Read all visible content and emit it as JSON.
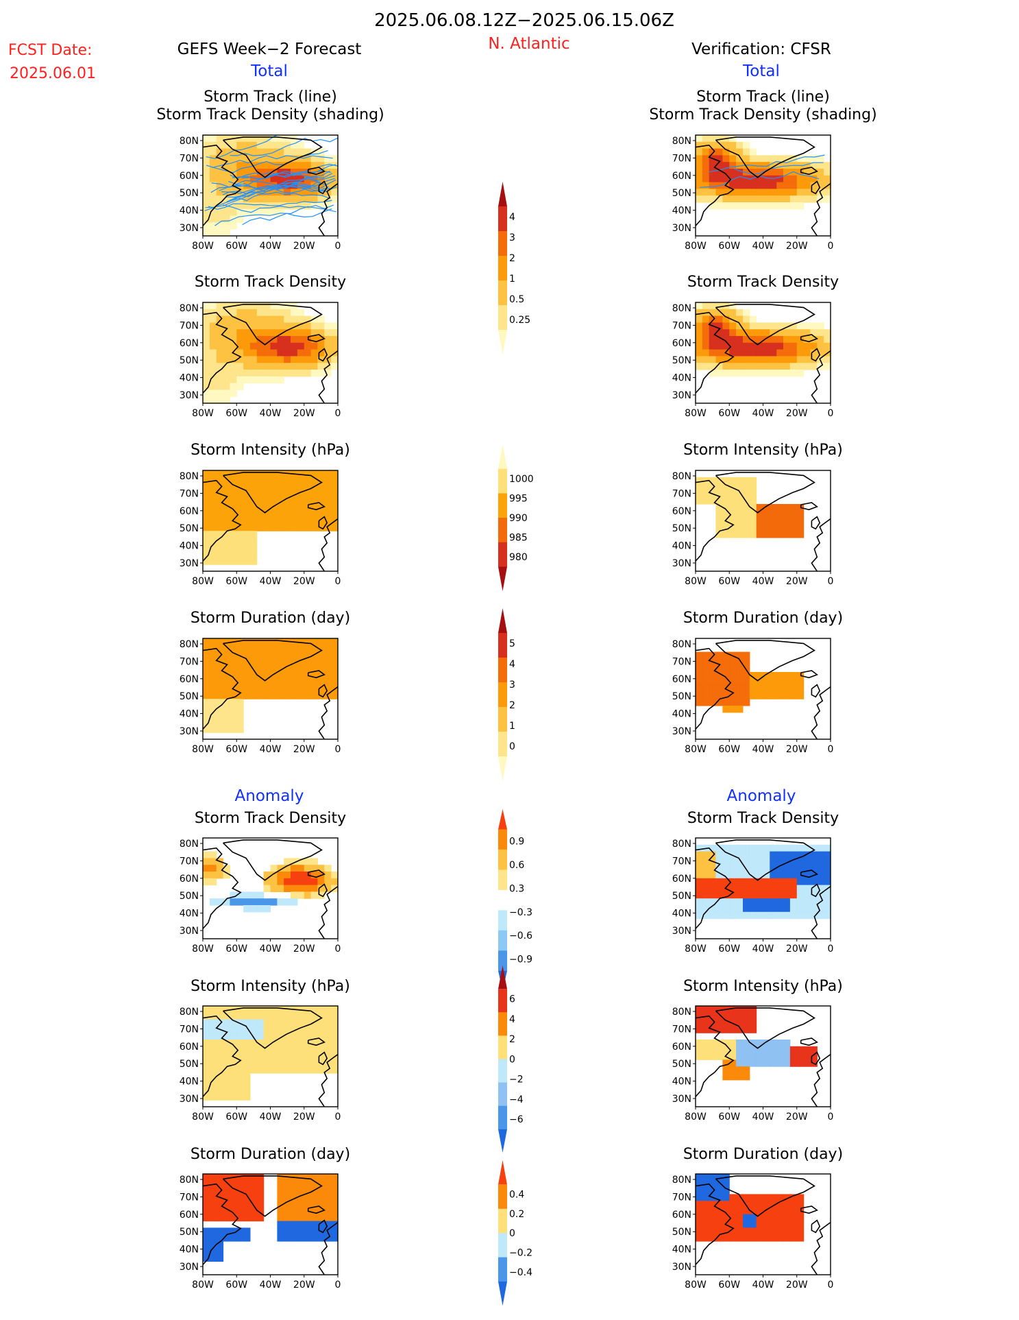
{
  "header": {
    "date_range": "2025.06.08.12Z−2025.06.15.06Z",
    "fcst_label": "FCST Date:",
    "fcst_value": "2025.06.01",
    "forecast_title": "GEFS Week−2 Forecast",
    "region": "N. Atlantic",
    "verification_title": "Verification: CFSR",
    "total_label": "Total",
    "anomaly_label": "Anomaly"
  },
  "colors": {
    "title_red": "#ff2020",
    "title_blue": "#1030ff",
    "track_line": "#1e90ff",
    "map_outline": "#000000"
  },
  "axis": {
    "lat_ticks": [
      "80N",
      "70N",
      "60N",
      "50N",
      "40N",
      "30N"
    ],
    "lon_ticks": [
      "80W",
      "60W",
      "40W",
      "20W",
      "0"
    ]
  },
  "panels": [
    {
      "id": "fc-track",
      "col": "left",
      "row": 0,
      "title": "Storm Track (line)",
      "subtitle": "Storm Track Density (shading)",
      "field": "track_density",
      "lines": true,
      "scale": "density"
    },
    {
      "id": "fc-density",
      "col": "left",
      "row": 1,
      "title": "Storm Track Density",
      "field": "track_density",
      "scale": "density"
    },
    {
      "id": "fc-intensity",
      "col": "left",
      "row": 2,
      "title": "Storm Intensity (hPa)",
      "field": "intensity",
      "scale": "intensity"
    },
    {
      "id": "fc-duration",
      "col": "left",
      "row": 3,
      "title": "Storm Duration (day)",
      "field": "duration",
      "scale": "duration"
    },
    {
      "id": "fc-density-anom",
      "col": "left",
      "row": 4,
      "title": "Storm Track Density",
      "field": "density_anomaly",
      "scale": "anom_density"
    },
    {
      "id": "fc-intensity-anom",
      "col": "left",
      "row": 5,
      "title": "Storm Intensity (hPa)",
      "field": "intensity_anomaly",
      "scale": "anom_intensity"
    },
    {
      "id": "fc-duration-anom",
      "col": "left",
      "row": 6,
      "title": "Storm Duration (day)",
      "field": "duration_anomaly",
      "scale": "anom_duration"
    },
    {
      "id": "vf-track",
      "col": "right",
      "row": 0,
      "title": "Storm Track (line)",
      "subtitle": "Storm Track Density (shading)",
      "field": "track_density",
      "lines": true,
      "scale": "density"
    },
    {
      "id": "vf-density",
      "col": "right",
      "row": 1,
      "title": "Storm Track Density",
      "field": "track_density",
      "scale": "density"
    },
    {
      "id": "vf-intensity",
      "col": "right",
      "row": 2,
      "title": "Storm Intensity (hPa)",
      "field": "intensity",
      "scale": "intensity"
    },
    {
      "id": "vf-duration",
      "col": "right",
      "row": 3,
      "title": "Storm Duration (day)",
      "field": "duration",
      "scale": "duration"
    },
    {
      "id": "vf-density-anom",
      "col": "right",
      "row": 4,
      "title": "Storm Track Density",
      "field": "density_anomaly",
      "scale": "anom_density"
    },
    {
      "id": "vf-intensity-anom",
      "col": "right",
      "row": 5,
      "title": "Storm Intensity (hPa)",
      "field": "intensity_anomaly",
      "scale": "anom_intensity"
    },
    {
      "id": "vf-duration-anom",
      "col": "right",
      "row": 6,
      "title": "Storm Duration (day)",
      "field": "duration_anomaly",
      "scale": "anom_duration"
    }
  ],
  "colorbars": [
    {
      "id": "density",
      "labels": [
        "4",
        "3",
        "2",
        "1",
        "0.5",
        "0.25"
      ],
      "colors": [
        "#a50f0f",
        "#d7301f",
        "#f46d0a",
        "#fc9a0a",
        "#fdc242",
        "#fee48a",
        "#fff8c0"
      ],
      "open_low": true
    },
    {
      "id": "intensity",
      "labels": [
        "1000",
        "995",
        "990",
        "985",
        "980"
      ],
      "colors": [
        "#fff8c0",
        "#fde07a",
        "#fca30a",
        "#f26a0a",
        "#d7301f",
        "#a50f0f"
      ],
      "open_high_top": true
    },
    {
      "id": "duration",
      "labels": [
        "5",
        "4",
        "3",
        "2",
        "1",
        "0"
      ],
      "colors": [
        "#a50f0f",
        "#d7301f",
        "#f46d0a",
        "#fc9a0a",
        "#fdc242",
        "#fee48a",
        "#fff8c0"
      ],
      "open_low": true
    },
    {
      "id": "anom_density",
      "labels": [
        "0.9",
        "0.6",
        "0.3",
        "−0.3",
        "−0.6",
        "−0.9"
      ],
      "colors": [
        "#f64010",
        "#fc8a0a",
        "#fdc242",
        "#fee48a",
        "#ffffff",
        "#bfe8fb",
        "#8ccaf5",
        "#4a97ea",
        "#1f68e0"
      ]
    },
    {
      "id": "anom_intensity",
      "labels": [
        "6",
        "4",
        "2",
        "0",
        "−2",
        "−4",
        "−6"
      ],
      "colors": [
        "#a50f0f",
        "#e8341a",
        "#fc8a0a",
        "#fde07a",
        "#bfe8fb",
        "#8fc1f3",
        "#4a97ea",
        "#1f68e0"
      ]
    },
    {
      "id": "anom_duration",
      "labels": [
        "0.4",
        "0.2",
        "0",
        "−0.2",
        "−0.4"
      ],
      "colors": [
        "#f64010",
        "#fc8a0a",
        "#fde07a",
        "#bfe8fb",
        "#4a97ea",
        "#1f68e0"
      ]
    }
  ],
  "chart_data": {
    "type": "heatmap",
    "title": "2025.06.08.12Z−2025.06.15.06Z",
    "region": "N. Atlantic",
    "x_range": [
      "80W",
      "0"
    ],
    "y_range": [
      "30N",
      "80N"
    ],
    "forecast_model": "GEFS Week−2 Forecast",
    "verification": "CFSR"
  }
}
